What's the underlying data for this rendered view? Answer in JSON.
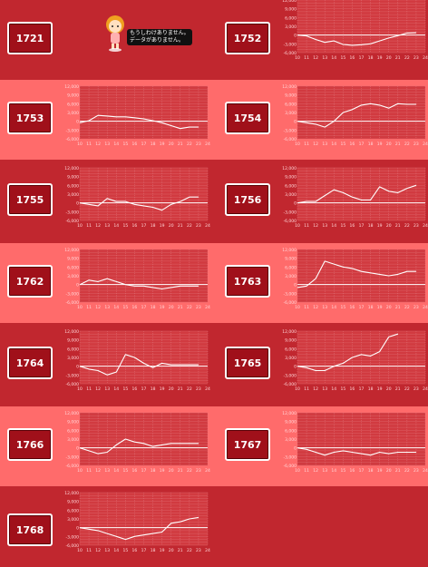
{
  "colors": {
    "page_bg": "#c1272f",
    "light_row_bg": "#ff6b6b",
    "dark_row_bg": "#c1272f",
    "button_bg": "#a0101a",
    "chart_bg": "#d13a40",
    "chart_line": "#ffffff"
  },
  "axis": {
    "y_ticks": [
      "12,000",
      "9,000",
      "6,000",
      "3,000",
      "0",
      "-3,000",
      "-6,000"
    ],
    "x_ticks": [
      "10",
      "11",
      "12",
      "13",
      "14",
      "15",
      "16",
      "17",
      "18",
      "19",
      "20",
      "21",
      "22",
      "23",
      "24"
    ]
  },
  "no_data": {
    "icon": "character-mascot-icon",
    "line1": "もうしわけありません。",
    "line2": "データがありません。"
  },
  "machines": [
    {
      "id": "1721",
      "has_chart": false
    },
    {
      "id": "1752",
      "has_chart": true
    },
    {
      "id": "1753",
      "has_chart": true
    },
    {
      "id": "1754",
      "has_chart": true
    },
    {
      "id": "1755",
      "has_chart": true
    },
    {
      "id": "1756",
      "has_chart": true
    },
    {
      "id": "1762",
      "has_chart": true
    },
    {
      "id": "1763",
      "has_chart": true
    },
    {
      "id": "1764",
      "has_chart": true
    },
    {
      "id": "1765",
      "has_chart": true
    },
    {
      "id": "1766",
      "has_chart": true
    },
    {
      "id": "1767",
      "has_chart": true
    },
    {
      "id": "1768",
      "has_chart": true
    }
  ],
  "chart_data": [
    {
      "type": "line",
      "machine": "1752",
      "x": [
        10,
        11,
        12,
        13,
        14,
        15,
        16,
        17,
        18,
        19,
        20,
        21,
        22,
        23
      ],
      "values": [
        0,
        -300,
        -1500,
        -2500,
        -2000,
        -3200,
        -3500,
        -3300,
        -3000,
        -2000,
        -1000,
        -200,
        700,
        800
      ],
      "ylim": [
        -6000,
        12000
      ]
    },
    {
      "type": "line",
      "machine": "1753",
      "x": [
        10,
        11,
        12,
        13,
        14,
        15,
        16,
        17,
        18,
        19,
        20,
        21,
        22,
        23
      ],
      "values": [
        -500,
        200,
        2000,
        1800,
        1500,
        1500,
        1200,
        800,
        200,
        -500,
        -1500,
        -2500,
        -2000,
        -2000
      ],
      "ylim": [
        -6000,
        12000
      ]
    },
    {
      "type": "line",
      "machine": "1754",
      "x": [
        10,
        11,
        12,
        13,
        14,
        15,
        16,
        17,
        18,
        19,
        20,
        21,
        22,
        23
      ],
      "values": [
        0,
        -500,
        -1000,
        -2000,
        0,
        3000,
        4000,
        5500,
        6000,
        5500,
        4500,
        6000,
        5800,
        5800
      ],
      "ylim": [
        -6000,
        12000
      ]
    },
    {
      "type": "line",
      "machine": "1755",
      "x": [
        10,
        11,
        12,
        13,
        14,
        15,
        16,
        17,
        18,
        19,
        20,
        21,
        22,
        23
      ],
      "values": [
        0,
        -500,
        -1000,
        1500,
        500,
        500,
        -500,
        -1000,
        -1500,
        -2500,
        -500,
        500,
        2000,
        2000
      ],
      "ylim": [
        -6000,
        12000
      ]
    },
    {
      "type": "line",
      "machine": "1756",
      "x": [
        10,
        11,
        12,
        13,
        14,
        15,
        16,
        17,
        18,
        19,
        20,
        21,
        22,
        23
      ],
      "values": [
        0,
        500,
        500,
        2500,
        4500,
        3500,
        2000,
        1000,
        1000,
        5500,
        4000,
        3500,
        5000,
        6000
      ],
      "ylim": [
        -6000,
        12000
      ]
    },
    {
      "type": "line",
      "machine": "1762",
      "x": [
        10,
        11,
        12,
        13,
        14,
        15,
        16,
        17,
        18,
        19,
        20,
        21,
        22,
        23
      ],
      "values": [
        0,
        1500,
        1000,
        2000,
        1000,
        0,
        -500,
        -500,
        -1000,
        -1500,
        -1000,
        -500,
        -500,
        -500
      ],
      "ylim": [
        -6000,
        12000
      ]
    },
    {
      "type": "line",
      "machine": "1763",
      "x": [
        10,
        11,
        12,
        13,
        14,
        15,
        16,
        17,
        18,
        19,
        20,
        21,
        22,
        23
      ],
      "values": [
        -1000,
        -500,
        2000,
        8000,
        7000,
        6000,
        5500,
        4500,
        4000,
        3500,
        3000,
        3500,
        4500,
        4500
      ],
      "ylim": [
        -6000,
        12000
      ]
    },
    {
      "type": "line",
      "machine": "1764",
      "x": [
        10,
        11,
        12,
        13,
        14,
        15,
        16,
        17,
        18,
        19,
        20,
        21,
        22,
        23
      ],
      "values": [
        0,
        -1000,
        -1500,
        -3000,
        -2000,
        4000,
        3000,
        1000,
        -500,
        1000,
        500,
        500,
        500,
        500
      ],
      "ylim": [
        -6000,
        12000
      ]
    },
    {
      "type": "line",
      "machine": "1765",
      "x": [
        10,
        11,
        12,
        13,
        14,
        15,
        16,
        17,
        18,
        19,
        20,
        21
      ],
      "values": [
        0,
        -500,
        -1500,
        -1500,
        0,
        1000,
        3000,
        4000,
        3500,
        5000,
        10000,
        11000
      ],
      "ylim": [
        -6000,
        12000
      ]
    },
    {
      "type": "line",
      "machine": "1766",
      "x": [
        10,
        11,
        12,
        13,
        14,
        15,
        16,
        17,
        18,
        19,
        20,
        21,
        22,
        23
      ],
      "values": [
        0,
        -1000,
        -2000,
        -1500,
        1000,
        3000,
        2000,
        1500,
        500,
        1000,
        1500,
        1500,
        1500,
        1500
      ],
      "ylim": [
        -6000,
        12000
      ]
    },
    {
      "type": "line",
      "machine": "1767",
      "x": [
        10,
        11,
        12,
        13,
        14,
        15,
        16,
        17,
        18,
        19,
        20,
        21,
        22,
        23
      ],
      "values": [
        0,
        -500,
        -1500,
        -2500,
        -1500,
        -1000,
        -1500,
        -2000,
        -2500,
        -1500,
        -2000,
        -1500,
        -1500,
        -1500
      ],
      "ylim": [
        -6000,
        12000
      ]
    },
    {
      "type": "line",
      "machine": "1768",
      "x": [
        10,
        11,
        12,
        13,
        14,
        15,
        16,
        17,
        18,
        19,
        20,
        21,
        22,
        23
      ],
      "values": [
        0,
        -500,
        -1000,
        -2000,
        -3000,
        -4000,
        -3000,
        -2500,
        -2000,
        -1500,
        1500,
        2000,
        3000,
        3500
      ],
      "ylim": [
        -6000,
        12000
      ]
    }
  ]
}
